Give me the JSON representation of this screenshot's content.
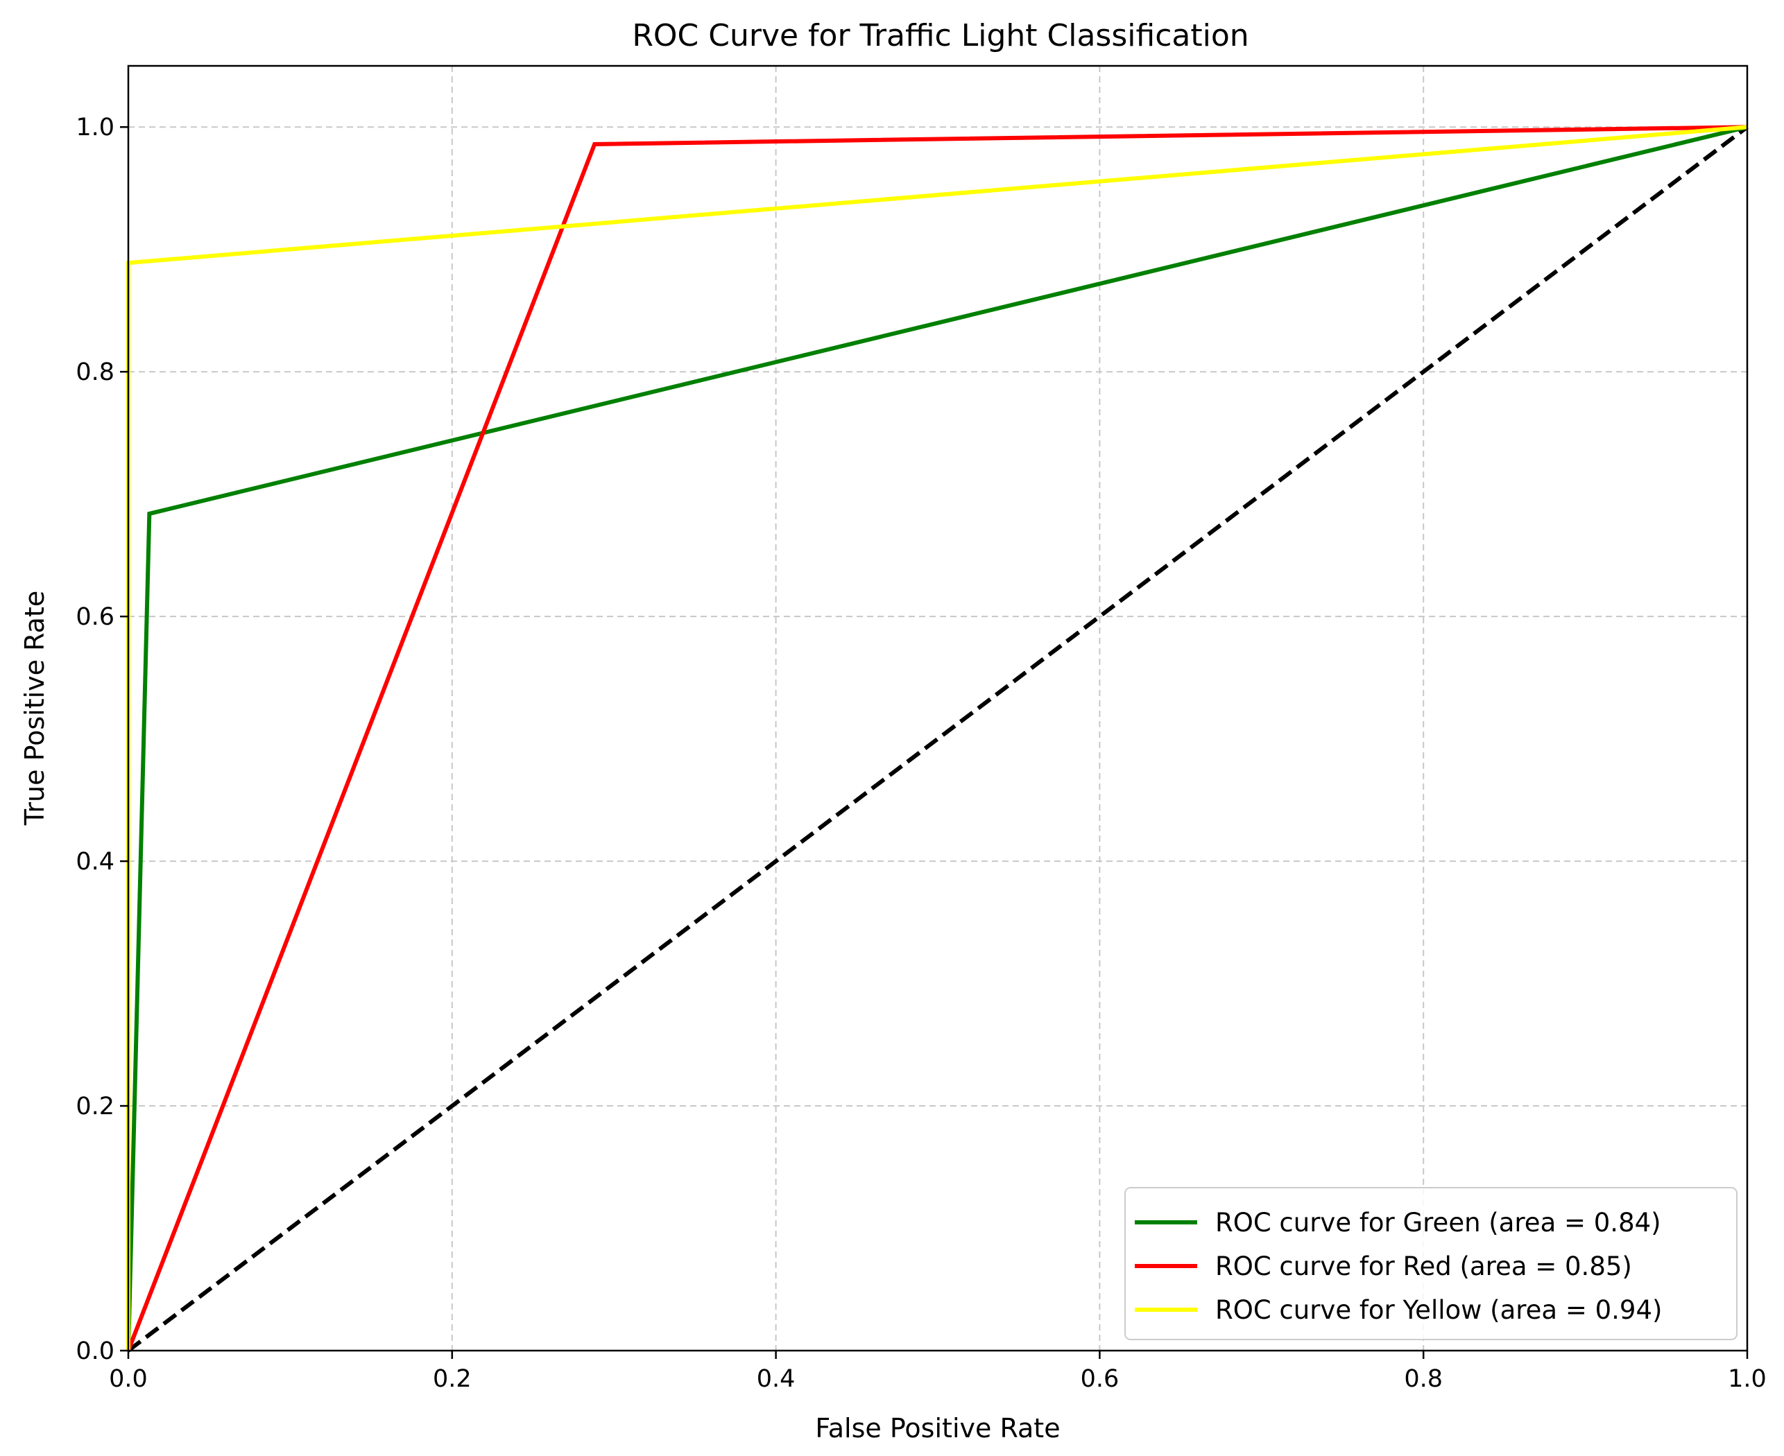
{
  "chart_data": {
    "type": "line",
    "title": "ROC Curve for Traffic Light Classification",
    "xlabel": "False Positive Rate",
    "ylabel": "True Positive Rate",
    "xlim": [
      0.0,
      1.0
    ],
    "ylim": [
      0.0,
      1.05
    ],
    "xticks": [
      0.0,
      0.2,
      0.4,
      0.6,
      0.8,
      1.0
    ],
    "yticks": [
      0.0,
      0.2,
      0.4,
      0.6,
      0.8,
      1.0
    ],
    "xtick_labels": [
      "0.0",
      "0.2",
      "0.4",
      "0.6",
      "0.8",
      "1.0"
    ],
    "ytick_labels": [
      "0.0",
      "0.2",
      "0.4",
      "0.6",
      "0.8",
      "1.0"
    ],
    "grid": true,
    "legend_position": "lower-right",
    "series": [
      {
        "name": "ROC curve for Green (area = 0.84)",
        "color": "#008000",
        "x": [
          0.0,
          0.013,
          1.0
        ],
        "y": [
          0.0,
          0.684,
          1.0
        ]
      },
      {
        "name": "ROC curve for Red (area = 0.85)",
        "color": "#ff0000",
        "x": [
          0.0,
          0.288,
          1.0
        ],
        "y": [
          0.0,
          0.986,
          1.0
        ]
      },
      {
        "name": "ROC curve for Yellow (area = 0.94)",
        "color": "#ffff00",
        "x": [
          0.0,
          0.0,
          1.0
        ],
        "y": [
          0.0,
          0.889,
          1.0
        ]
      }
    ],
    "reference_line": {
      "style": "dashed",
      "color": "#000000",
      "x": [
        0.0,
        1.0
      ],
      "y": [
        0.0,
        1.0
      ]
    }
  }
}
